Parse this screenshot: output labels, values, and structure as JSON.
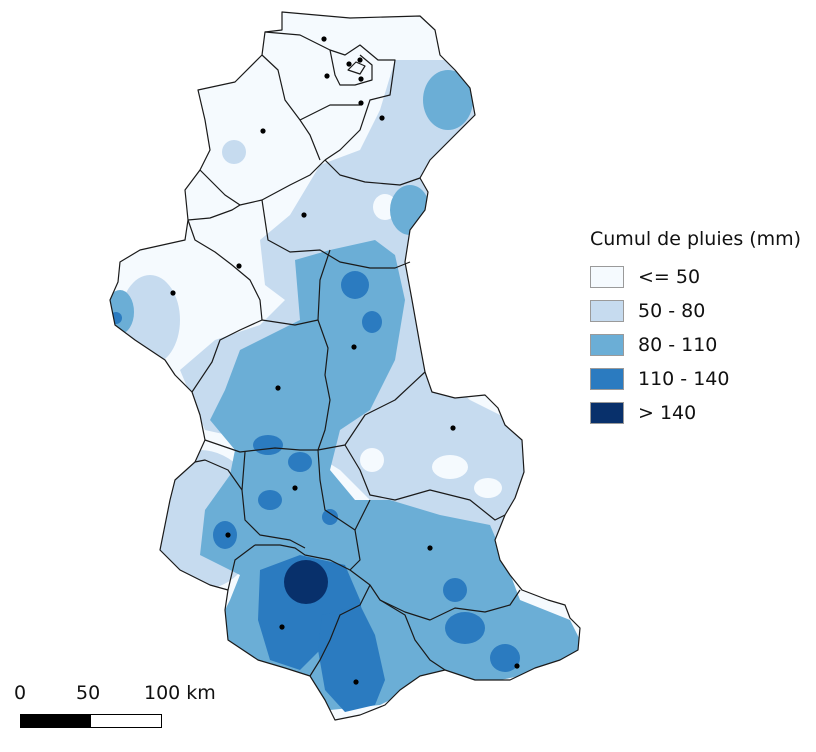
{
  "legend": {
    "title": "Cumul de pluies (mm)",
    "classes": [
      {
        "label": "<= 50",
        "color": "#f5fafe"
      },
      {
        "label": "50 - 80",
        "color": "#c6dbef"
      },
      {
        "label": "80 - 110",
        "color": "#6baed6"
      },
      {
        "label": "110 - 140",
        "color": "#2b7bc0"
      },
      {
        "label": "> 140",
        "color": "#08306b"
      }
    ]
  },
  "scale_bar": {
    "labels": [
      "0",
      "50",
      "100 km"
    ],
    "segment_colors": [
      "#000000",
      "#ffffff"
    ]
  },
  "colors": {
    "border": "#1a1a1a",
    "station": "#000000",
    "background": "#ffffff"
  }
}
